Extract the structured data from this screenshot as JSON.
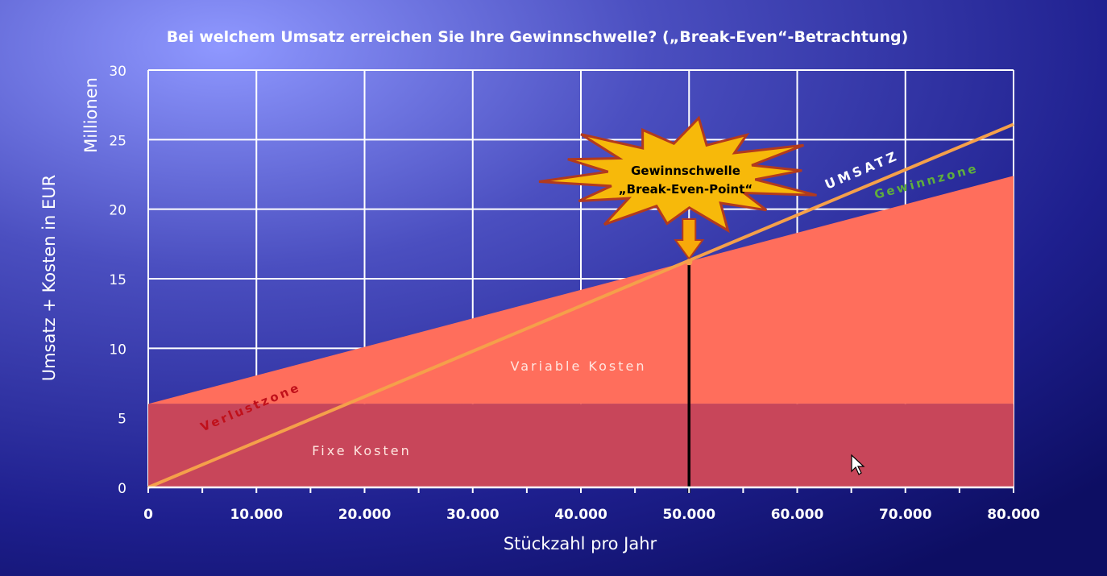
{
  "chart_data": {
    "type": "area",
    "title": "Bei welchem Umsatz erreichen Sie Ihre Gewinnschwelle? („Break-Even“-Betrachtung)",
    "xlabel": "Stückzahl pro Jahr",
    "ylabel": "Umsatz + Kosten in EUR",
    "y_unit_label": "Millionen",
    "xlim": [
      0,
      80000
    ],
    "ylim": [
      0,
      30
    ],
    "x_ticks": [
      0,
      10000,
      20000,
      30000,
      40000,
      50000,
      60000,
      70000,
      80000
    ],
    "x_tick_labels": [
      "0",
      "10.000",
      "20.000",
      "30.000",
      "40.000",
      "50.000",
      "60.000",
      "70.000",
      "80.000"
    ],
    "y_ticks": [
      0,
      5,
      10,
      15,
      20,
      25,
      30
    ],
    "y_tick_labels": [
      "0",
      "5",
      "10",
      "15",
      "20",
      "25",
      "30"
    ],
    "grid": true,
    "series": [
      {
        "name": "Fixe Kosten",
        "x": [
          0,
          80000
        ],
        "values": [
          6,
          6
        ],
        "color": "#c8465a"
      },
      {
        "name": "Variable Kosten",
        "x": [
          0,
          80000
        ],
        "values": [
          6,
          22.4
        ],
        "color": "#ff6e5c"
      },
      {
        "name": "UMSATZ",
        "x": [
          0,
          80000
        ],
        "values": [
          0,
          26.1
        ],
        "color": "#f5a04a"
      }
    ],
    "break_even": {
      "x": 50000,
      "y": 16.2
    },
    "annotations": {
      "break_even_line1": "Gewinnschwelle",
      "break_even_line2": "„Break-Even-Point“",
      "loss_zone": "Verlustzone",
      "profit_zone": "Gewinnzone"
    },
    "colors": {
      "loss_zone_text": "#c0101a",
      "profit_zone_text": "#5fae3c",
      "starburst": "#f7b90a",
      "starburst_outline": "#b23a1e",
      "arrow": "#f7a90a"
    }
  }
}
